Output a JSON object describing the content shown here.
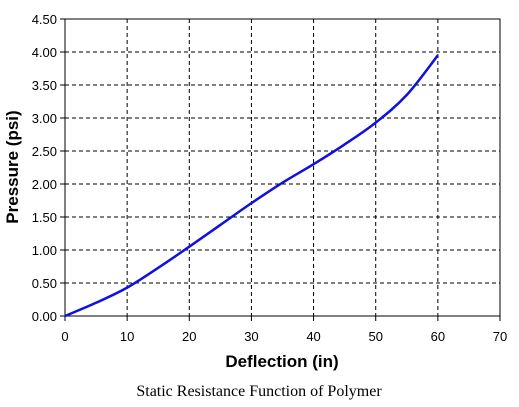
{
  "chart_data": {
    "type": "line",
    "title": "",
    "caption": "Static Resistance Function of Polymer",
    "xlabel": "Deflection (in)",
    "ylabel": "Pressure (psi)",
    "xlim": [
      0,
      70
    ],
    "ylim": [
      0,
      4.5
    ],
    "x_ticks": [
      "0",
      "10",
      "20",
      "30",
      "40",
      "50",
      "60",
      "70"
    ],
    "y_ticks": [
      "0.00",
      "0.50",
      "1.00",
      "1.50",
      "2.00",
      "2.50",
      "3.00",
      "3.50",
      "4.00",
      "4.50"
    ],
    "grid": true,
    "legend": "none",
    "series": [
      {
        "color": "#1010e0",
        "x": [
          0,
          5,
          10,
          15,
          20,
          25,
          30,
          35,
          40,
          45,
          50,
          55,
          60
        ],
        "y": [
          0,
          0.2,
          0.43,
          0.73,
          1.05,
          1.38,
          1.71,
          2.02,
          2.3,
          2.6,
          2.93,
          3.35,
          3.95
        ]
      }
    ]
  }
}
